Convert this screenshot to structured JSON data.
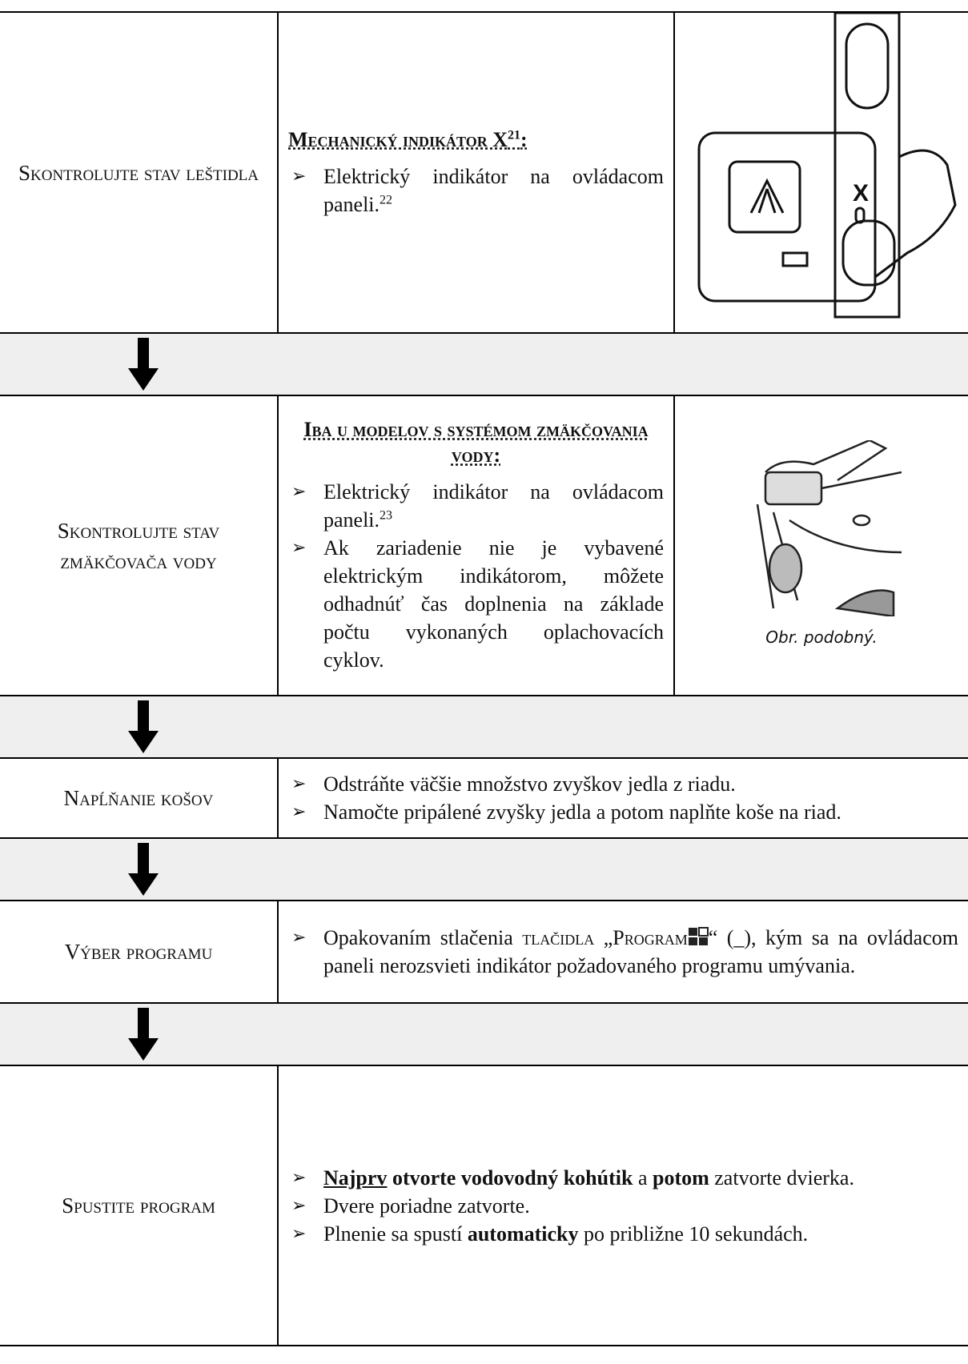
{
  "rows": [
    {
      "label": "Skontrolujte stav leštidla",
      "heading": "Mechanický indikátor X",
      "heading_sup": "21",
      "heading_end": ":",
      "bullets": [
        {
          "text": "Elektrický indikátor na ovládacom paneli.",
          "sup": "22"
        }
      ],
      "figure_label": "X"
    },
    {
      "label": "Skontrolujte stav zmäkčovača vody",
      "heading": "Iba u modelov s systémom zmäkčovania vody:",
      "bullets": [
        {
          "text": "Elektrický indikátor na ovládacom paneli.",
          "sup": "23"
        },
        {
          "text": "Ak zariadenie nie je vybavené elektrickým indikátorom, môžete odhadnúť čas doplnenia na základe počtu vykonaných oplachovacích cyklov."
        }
      ],
      "caption": "Obr. podobný."
    },
    {
      "label": "Napĺňanie košov",
      "bullets": [
        "Odstráňte väčšie množstvo zvyškov jedla z riadu.",
        "Namočte pripálené zvyšky jedla a potom naplňte koše na riad."
      ]
    },
    {
      "label": "Výber programu",
      "bullet": {
        "start": "Opakovaním stlačenia",
        "button": "tlačidla „Program",
        "end": "“ (_), kým sa na ovládacom paneli nerozsvieti indikátor požadovaného programu umývania."
      }
    },
    {
      "label": "Spustite program",
      "bullets": [
        [
          "Najprv",
          "otvorte vodovodný kohútik",
          "a",
          "potom",
          "zatvorte dvierka."
        ],
        [
          "Dvere poriadne zatvorte."
        ],
        [
          "Plnenie sa spustí",
          "automaticky",
          "po približne 10 sekundách."
        ]
      ]
    }
  ]
}
